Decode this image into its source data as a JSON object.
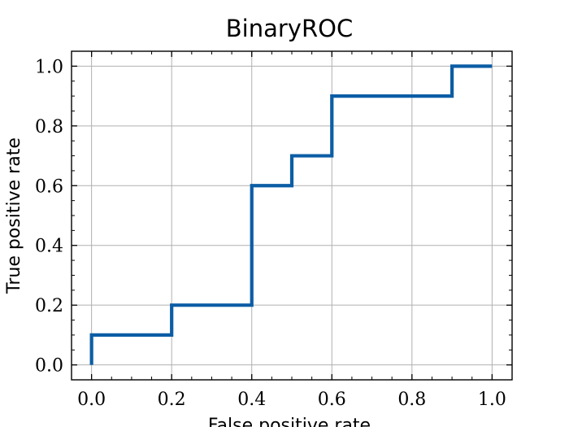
{
  "chart_data": {
    "type": "line",
    "title": "BinaryROC",
    "xlabel": "False positive rate",
    "ylabel": "True positive rate",
    "xlim": [
      -0.05,
      1.05
    ],
    "ylim": [
      -0.05,
      1.05
    ],
    "grid": true,
    "xticks": [
      "0.0",
      "0.2",
      "0.4",
      "0.6",
      "0.8",
      "1.0"
    ],
    "yticks": [
      "0.0",
      "0.2",
      "0.4",
      "0.6",
      "0.8",
      "1.0"
    ],
    "series": [
      {
        "color": "#0C5DA5",
        "step": "post",
        "x": [
          0.0,
          0.0,
          0.2,
          0.2,
          0.4,
          0.4,
          0.5,
          0.5,
          0.6,
          0.6,
          0.9,
          0.9,
          1.0
        ],
        "y": [
          0.0,
          0.1,
          0.1,
          0.2,
          0.2,
          0.6,
          0.6,
          0.7,
          0.7,
          0.9,
          0.9,
          1.0,
          1.0
        ]
      }
    ]
  }
}
